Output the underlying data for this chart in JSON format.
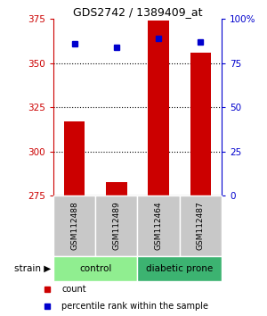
{
  "title": "GDS2742 / 1389409_at",
  "samples": [
    "GSM112488",
    "GSM112489",
    "GSM112464",
    "GSM112487"
  ],
  "bar_values": [
    317,
    283,
    374,
    356
  ],
  "percentile_values": [
    86,
    84,
    89,
    87
  ],
  "bar_color": "#CC0000",
  "percentile_color": "#0000CD",
  "ylim_left": [
    275,
    375
  ],
  "ylim_right": [
    0,
    100
  ],
  "yticks_left": [
    275,
    300,
    325,
    350,
    375
  ],
  "yticks_right": [
    0,
    25,
    50,
    75,
    100
  ],
  "grid_values": [
    300,
    325,
    350
  ],
  "left_axis_color": "#CC0000",
  "right_axis_color": "#0000CD",
  "bg_color": "#FFFFFF",
  "sample_box_color": "#C8C8C8",
  "group_info": [
    [
      0,
      2,
      "control",
      "#90EE90"
    ],
    [
      2,
      4,
      "diabetic prone",
      "#3CB371"
    ]
  ],
  "legend_count_label": "count",
  "legend_percentile_label": "percentile rank within the sample",
  "strain_label": "strain"
}
